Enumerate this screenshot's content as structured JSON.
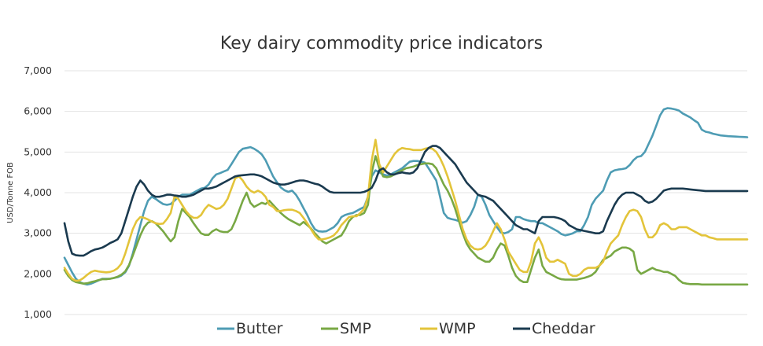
{
  "chart_data": {
    "type": "line",
    "title": "Key dairy commodity price indicators",
    "xlabel": "",
    "ylabel": "USD/Tonne FOB",
    "ylim": [
      1000,
      7000
    ],
    "yticks": [
      "1,000",
      "2,000",
      "3,000",
      "4,000",
      "5,000",
      "6,000",
      "7,000"
    ],
    "ytick_values": [
      1000,
      2000,
      3000,
      4000,
      5000,
      6000,
      7000
    ],
    "grid": true,
    "legend_position": "bottom",
    "x": [
      0,
      1,
      2,
      3,
      4,
      5,
      6,
      7,
      8,
      9,
      10,
      11,
      12,
      13,
      14,
      15,
      16,
      17,
      18,
      19,
      20,
      21,
      22,
      23,
      24,
      25,
      26,
      27,
      28,
      29,
      30,
      31,
      32,
      33,
      34,
      35,
      36,
      37,
      38,
      39,
      40,
      41,
      42,
      43,
      44,
      45,
      46,
      47,
      48,
      49,
      50,
      51,
      52,
      53,
      54,
      55,
      56,
      57,
      58,
      59,
      60,
      61,
      62,
      63,
      64,
      65,
      66,
      67,
      68,
      69,
      70,
      71,
      72,
      73,
      74,
      75,
      76,
      77,
      78,
      79,
      80,
      81,
      82,
      83,
      84,
      85,
      86,
      87,
      88,
      89,
      90,
      91,
      92,
      93,
      94,
      95,
      96,
      97,
      98,
      99,
      100,
      101,
      102,
      103,
      104,
      105,
      106,
      107,
      108,
      109,
      110,
      111,
      112,
      113,
      114,
      115,
      116,
      117,
      118,
      119,
      120,
      121,
      122,
      123,
      124,
      125,
      126,
      127,
      128,
      129,
      130,
      131,
      132,
      133,
      134,
      135,
      136,
      137,
      138,
      139,
      140,
      141,
      142,
      143,
      144,
      145,
      146,
      147,
      148,
      149,
      150,
      151,
      152,
      153,
      154,
      155,
      156,
      157,
      158,
      159,
      160,
      161,
      162,
      163,
      164,
      165,
      166,
      167,
      168,
      169,
      170,
      171,
      172,
      173,
      174,
      175,
      176,
      177,
      178,
      179,
      180
    ],
    "series": [
      {
        "name": "Butter",
        "color": "#4e9cb4",
        "values": [
          2400,
          2220,
          2040,
          1880,
          1800,
          1760,
          1740,
          1760,
          1800,
          1840,
          1880,
          1880,
          1880,
          1900,
          1920,
          1960,
          2040,
          2200,
          2500,
          2850,
          3200,
          3550,
          3800,
          3900,
          3850,
          3780,
          3720,
          3700,
          3720,
          3800,
          3900,
          3950,
          3950,
          3950,
          4000,
          4050,
          4100,
          4120,
          4200,
          4350,
          4450,
          4480,
          4520,
          4560,
          4700,
          4850,
          5000,
          5080,
          5100,
          5120,
          5080,
          5020,
          4940,
          4800,
          4600,
          4400,
          4260,
          4130,
          4060,
          4020,
          4050,
          3950,
          3800,
          3620,
          3450,
          3250,
          3100,
          3050,
          3040,
          3050,
          3100,
          3150,
          3250,
          3400,
          3450,
          3480,
          3500,
          3550,
          3600,
          3650,
          3900,
          4400,
          4550,
          4500,
          4450,
          4420,
          4450,
          4500,
          4550,
          4600,
          4680,
          4760,
          4780,
          4780,
          4760,
          4740,
          4600,
          4450,
          4300,
          3900,
          3500,
          3380,
          3350,
          3330,
          3300,
          3260,
          3300,
          3450,
          3650,
          3950,
          3900,
          3700,
          3450,
          3300,
          3150,
          3020,
          3000,
          3030,
          3100,
          3400,
          3400,
          3350,
          3320,
          3300,
          3300,
          3250,
          3250,
          3200,
          3150,
          3100,
          3050,
          2980,
          2950,
          2970,
          3000,
          3050,
          3050,
          3200,
          3400,
          3700,
          3850,
          3950,
          4050,
          4300,
          4500,
          4550,
          4570,
          4580,
          4600,
          4680,
          4800,
          4880,
          4900,
          5000,
          5200,
          5400,
          5650,
          5900,
          6050,
          6080,
          6070,
          6050,
          6020,
          5950,
          5900,
          5850,
          5780,
          5720,
          5550,
          5500,
          5480,
          5450,
          5430,
          5410,
          5400,
          5390,
          5385,
          5380,
          5375,
          5370,
          5365
        ]
      },
      {
        "name": "SMP",
        "color": "#78a844",
        "values": [
          2100,
          1950,
          1850,
          1800,
          1780,
          1760,
          1770,
          1800,
          1820,
          1850,
          1870,
          1870,
          1880,
          1900,
          1930,
          1980,
          2060,
          2220,
          2450,
          2700,
          2950,
          3150,
          3260,
          3300,
          3250,
          3150,
          3050,
          2920,
          2800,
          2900,
          3300,
          3600,
          3500,
          3400,
          3250,
          3120,
          3000,
          2960,
          2960,
          3050,
          3100,
          3050,
          3030,
          3030,
          3100,
          3300,
          3550,
          3800,
          4000,
          3750,
          3650,
          3700,
          3750,
          3720,
          3800,
          3700,
          3600,
          3500,
          3420,
          3350,
          3300,
          3250,
          3200,
          3280,
          3200,
          3120,
          3000,
          2900,
          2800,
          2750,
          2800,
          2850,
          2900,
          2950,
          3100,
          3300,
          3400,
          3450,
          3450,
          3500,
          3700,
          4500,
          4900,
          4600,
          4400,
          4380,
          4400,
          4450,
          4500,
          4550,
          4600,
          4620,
          4640,
          4680,
          4700,
          4720,
          4720,
          4700,
          4600,
          4400,
          4200,
          4050,
          3850,
          3600,
          3300,
          3000,
          2750,
          2600,
          2500,
          2400,
          2350,
          2300,
          2300,
          2400,
          2600,
          2750,
          2700,
          2450,
          2150,
          1950,
          1850,
          1800,
          1800,
          2100,
          2400,
          2600,
          2200,
          2050,
          2000,
          1950,
          1900,
          1870,
          1860,
          1860,
          1860,
          1860,
          1880,
          1900,
          1930,
          1970,
          2050,
          2200,
          2350,
          2400,
          2450,
          2550,
          2600,
          2650,
          2650,
          2620,
          2550,
          2100,
          2000,
          2050,
          2100,
          2150,
          2100,
          2080,
          2050,
          2050,
          2000,
          1950,
          1850,
          1780,
          1760,
          1750,
          1750,
          1750,
          1740,
          1740,
          1740,
          1740,
          1740,
          1740,
          1740,
          1740,
          1740,
          1740,
          1740,
          1740,
          1740
        ]
      },
      {
        "name": "WMP",
        "color": "#e3c43a",
        "values": [
          2150,
          2000,
          1880,
          1830,
          1840,
          1900,
          1980,
          2050,
          2080,
          2060,
          2050,
          2040,
          2050,
          2080,
          2140,
          2250,
          2500,
          2800,
          3100,
          3300,
          3400,
          3380,
          3340,
          3290,
          3250,
          3230,
          3240,
          3350,
          3500,
          3900,
          3850,
          3700,
          3550,
          3440,
          3380,
          3380,
          3450,
          3600,
          3700,
          3650,
          3600,
          3620,
          3700,
          3850,
          4100,
          4350,
          4400,
          4300,
          4150,
          4050,
          4000,
          4050,
          4000,
          3900,
          3700,
          3650,
          3550,
          3550,
          3570,
          3580,
          3580,
          3550,
          3500,
          3380,
          3250,
          3100,
          2950,
          2850,
          2850,
          2870,
          2900,
          2950,
          3050,
          3200,
          3300,
          3400,
          3420,
          3420,
          3500,
          3600,
          3900,
          4800,
          5300,
          4700,
          4500,
          4650,
          4800,
          4950,
          5050,
          5100,
          5080,
          5070,
          5050,
          5050,
          5050,
          5080,
          5100,
          5080,
          5000,
          4850,
          4650,
          4400,
          4100,
          3800,
          3450,
          3100,
          2850,
          2700,
          2620,
          2600,
          2620,
          2700,
          2850,
          3050,
          3250,
          3100,
          2850,
          2550,
          2400,
          2250,
          2100,
          2050,
          2050,
          2300,
          2750,
          2900,
          2700,
          2400,
          2300,
          2300,
          2350,
          2300,
          2250,
          2000,
          1950,
          1950,
          2000,
          2100,
          2150,
          2150,
          2150,
          2200,
          2300,
          2550,
          2750,
          2850,
          2950,
          3200,
          3400,
          3550,
          3580,
          3550,
          3400,
          3100,
          2900,
          2900,
          3000,
          3200,
          3250,
          3200,
          3100,
          3100,
          3150,
          3150,
          3150,
          3100,
          3050,
          3000,
          2950,
          2950,
          2900,
          2880,
          2850,
          2850,
          2850,
          2850,
          2850,
          2850,
          2850,
          2850,
          2850
        ]
      },
      {
        "name": "Cheddar",
        "color": "#1a3a4f",
        "values": [
          3250,
          2800,
          2500,
          2460,
          2450,
          2450,
          2500,
          2560,
          2600,
          2620,
          2650,
          2700,
          2760,
          2800,
          2850,
          3000,
          3300,
          3600,
          3900,
          4150,
          4300,
          4200,
          4050,
          3950,
          3900,
          3900,
          3920,
          3950,
          3950,
          3930,
          3920,
          3900,
          3900,
          3920,
          3950,
          4000,
          4050,
          4100,
          4100,
          4120,
          4150,
          4200,
          4250,
          4300,
          4350,
          4400,
          4420,
          4430,
          4440,
          4450,
          4450,
          4430,
          4400,
          4350,
          4300,
          4250,
          4220,
          4200,
          4200,
          4220,
          4250,
          4280,
          4300,
          4300,
          4280,
          4250,
          4220,
          4200,
          4150,
          4080,
          4020,
          4000,
          4000,
          4000,
          4000,
          4000,
          4000,
          4000,
          4000,
          4020,
          4060,
          4120,
          4300,
          4550,
          4600,
          4500,
          4450,
          4450,
          4480,
          4500,
          4480,
          4470,
          4500,
          4600,
          4800,
          5000,
          5100,
          5150,
          5150,
          5100,
          5000,
          4900,
          4800,
          4700,
          4550,
          4400,
          4250,
          4150,
          4050,
          3950,
          3920,
          3900,
          3850,
          3800,
          3700,
          3600,
          3500,
          3400,
          3300,
          3200,
          3150,
          3100,
          3100,
          3050,
          3000,
          3300,
          3400,
          3400,
          3400,
          3400,
          3380,
          3350,
          3300,
          3200,
          3150,
          3100,
          3080,
          3060,
          3040,
          3020,
          3000,
          3000,
          3050,
          3300,
          3500,
          3700,
          3850,
          3950,
          4000,
          4000,
          4000,
          3950,
          3900,
          3800,
          3750,
          3780,
          3850,
          3950,
          4050,
          4080,
          4100,
          4100,
          4100,
          4100,
          4090,
          4080,
          4070,
          4060,
          4050,
          4040,
          4040,
          4040,
          4040,
          4040,
          4040,
          4040,
          4040,
          4040,
          4040,
          4040,
          4040
        ]
      }
    ]
  }
}
